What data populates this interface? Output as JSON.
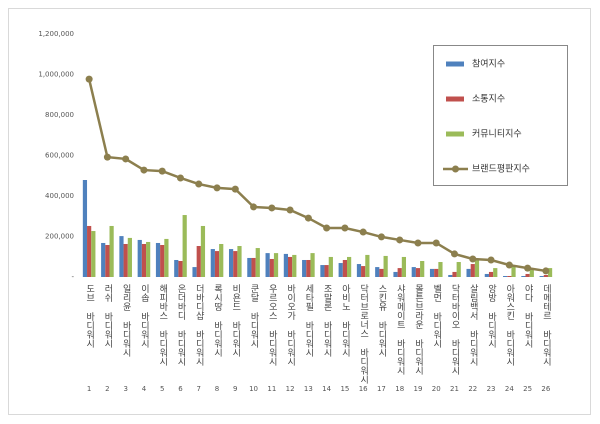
{
  "chart_data": {
    "type": "bar",
    "categories": [
      "도브 바디워시",
      "러쉬 바디워시",
      "일리윤 바디워시",
      "이솝 바디워시",
      "해피바스 바디워시",
      "온더바디 바디워시",
      "더바디샵 바디워시",
      "록시땅 바디워시",
      "비욘드 바디워시",
      "쿤달 바디워시",
      "우르오스 바디워시",
      "바이오가 바디워시",
      "세타필 바디워시",
      "조말론 바디워시",
      "아비노 바디워시",
      "닥터브로너스 바디워시",
      "스킨유 바디워시",
      "샤워메이트 바디워시",
      "몰튼브라운 바디워시",
      "벨먼 바디워시",
      "닥터바이오 바디워시",
      "살림백서 바디워시",
      "앙방 바디워시",
      "아워스킨 바디워시",
      "야다 바디워시",
      "데메테르 바디워시"
    ],
    "ranks": [
      "1",
      "2",
      "3",
      "4",
      "5",
      "6",
      "7",
      "8",
      "9",
      "10",
      "11",
      "12",
      "13",
      "14",
      "15",
      "16",
      "17",
      "18",
      "19",
      "20",
      "21",
      "22",
      "23",
      "24",
      "25",
      "26"
    ],
    "series": [
      {
        "name": "참여지수",
        "color": "#4f81bd",
        "values": [
          479000,
          168000,
          202000,
          183000,
          168000,
          84000,
          49000,
          138000,
          138000,
          94000,
          118000,
          114000,
          84000,
          59000,
          69000,
          64000,
          49000,
          25000,
          49000,
          40000,
          10000,
          40000,
          15000,
          5000,
          5000,
          5000
        ]
      },
      {
        "name": "소통지수",
        "color": "#c0504d",
        "values": [
          252000,
          158000,
          163000,
          163000,
          158000,
          79000,
          153000,
          128000,
          128000,
          94000,
          89000,
          99000,
          84000,
          59000,
          84000,
          54000,
          40000,
          44000,
          44000,
          40000,
          25000,
          64000,
          25000,
          5000,
          15000,
          10000
        ]
      },
      {
        "name": "커뮤니티지수",
        "color": "#9bbb59",
        "values": [
          227000,
          252000,
          193000,
          173000,
          188000,
          306000,
          252000,
          163000,
          153000,
          143000,
          118000,
          109000,
          118000,
          99000,
          99000,
          109000,
          104000,
          99000,
          79000,
          74000,
          74000,
          89000,
          44000,
          59000,
          40000,
          44000
        ]
      },
      {
        "name": "브랜드평판지수",
        "color": "#8c7f4e",
        "type": "line",
        "values": [
          977000,
          592000,
          583000,
          528000,
          523000,
          489000,
          459000,
          440000,
          434000,
          346000,
          341000,
          331000,
          291000,
          242000,
          242000,
          222000,
          198000,
          183000,
          168000,
          168000,
          114000,
          89000,
          84000,
          59000,
          44000,
          30000
        ]
      }
    ],
    "ylim": [
      0,
      1200000
    ],
    "yticks": [
      {
        "value": 0,
        "label": "-"
      },
      {
        "value": 200000,
        "label": "200,000"
      },
      {
        "value": 400000,
        "label": "400,000"
      },
      {
        "value": 600000,
        "label": "600,000"
      },
      {
        "value": 800000,
        "label": "800,000"
      },
      {
        "value": 1000000,
        "label": "1,000,000"
      },
      {
        "value": 1200000,
        "label": "1,200,000"
      }
    ],
    "grid": false,
    "legend": "upper right"
  }
}
